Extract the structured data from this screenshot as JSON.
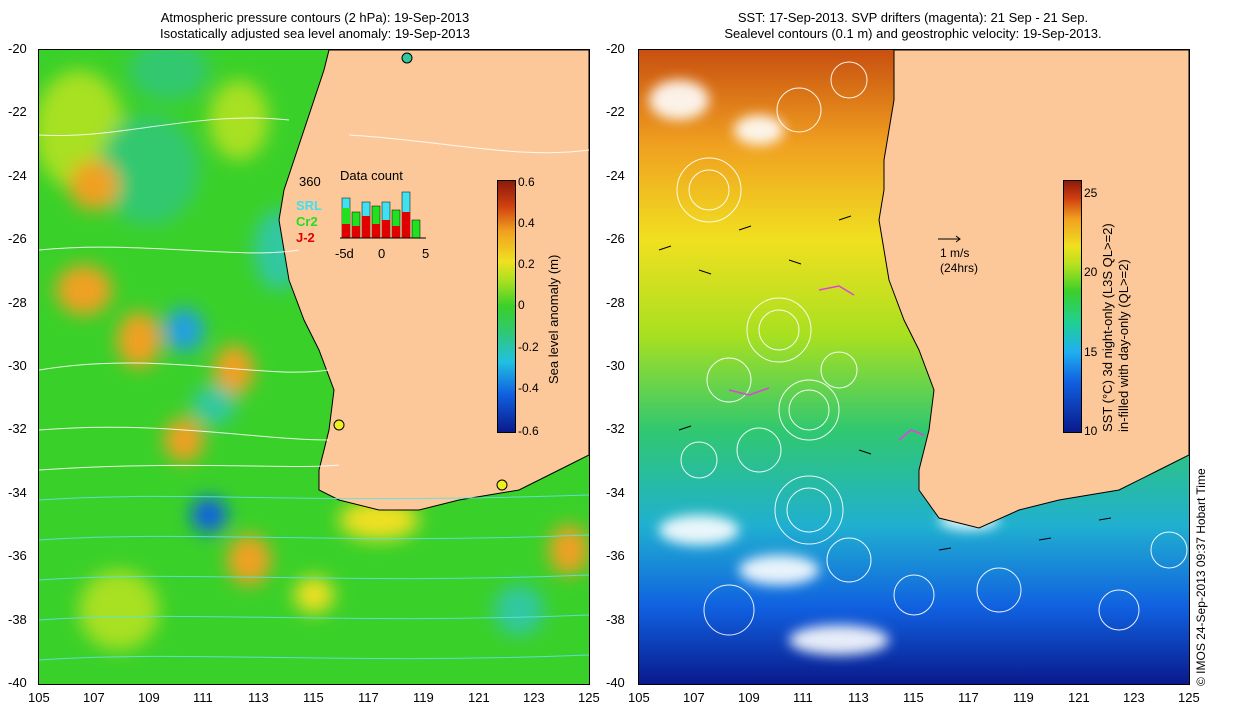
{
  "left_panel": {
    "title_line1": "Atmospheric pressure contours (2 hPa): 19-Sep-2013",
    "title_line2": "Isostatically adjusted sea level anomaly: 19-Sep-2013",
    "colorbar_title": "Sea level anomaly (m)",
    "colorbar_ticks": [
      "0.6",
      "0.4",
      "0.2",
      "0",
      "-0.2",
      "-0.4",
      "-0.6"
    ],
    "inset": {
      "count_label": "360",
      "title": "Data count",
      "legend": [
        {
          "name": "SRL",
          "color": "#40e0f0"
        },
        {
          "name": "Cr2",
          "color": "#20e020"
        },
        {
          "name": "J-2",
          "color": "#e00000"
        }
      ],
      "x_ticks": [
        "-5d",
        "0",
        "5"
      ]
    }
  },
  "right_panel": {
    "title_line1": "SST: 17-Sep-2013. SVP drifters (magenta): 21 Sep - 21 Sep.",
    "title_line2": "Sealevel contours (0.1 m) and geostrophic velocity: 19-Sep-2013.",
    "scale_label": "1 m/s",
    "scale_sub": "(24hrs)",
    "colorbar_title1": "SST (°C) 3d night-only (L3S QL>=2)",
    "colorbar_title2": "in-filled with day-only (QL>=2)",
    "colorbar_ticks": [
      "25",
      "20",
      "15",
      "10"
    ]
  },
  "axes": {
    "y_ticks": [
      "-20",
      "-22",
      "-24",
      "-26",
      "-28",
      "-30",
      "-32",
      "-34",
      "-36",
      "-38",
      "-40"
    ],
    "x_ticks": [
      "105",
      "107",
      "109",
      "111",
      "113",
      "115",
      "117",
      "119",
      "121",
      "123",
      "125"
    ]
  },
  "credit": "© IMOS 24-Sep-2013 09:37 Hobart Time"
}
